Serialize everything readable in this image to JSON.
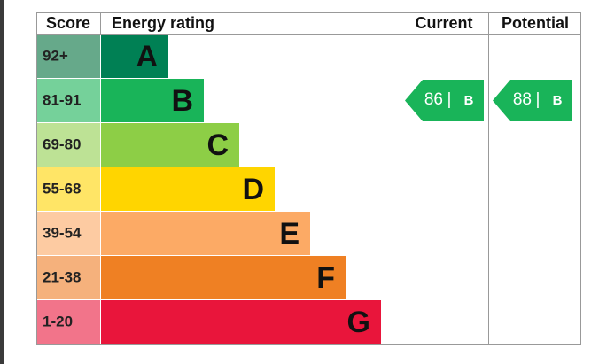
{
  "header": {
    "score": "Score",
    "energy_rating": "Energy rating",
    "current": "Current",
    "potential": "Potential"
  },
  "rows": [
    {
      "score": "92+",
      "rating": "A"
    },
    {
      "score": "81-91",
      "rating": "B"
    },
    {
      "score": "69-80",
      "rating": "C"
    },
    {
      "score": "55-68",
      "rating": "D"
    },
    {
      "score": "39-54",
      "rating": "E"
    },
    {
      "score": "21-38",
      "rating": "F"
    },
    {
      "score": "1-20",
      "rating": "G"
    }
  ],
  "current": {
    "score": "86",
    "rating": "B"
  },
  "potential": {
    "score": "88",
    "rating": "B"
  }
}
